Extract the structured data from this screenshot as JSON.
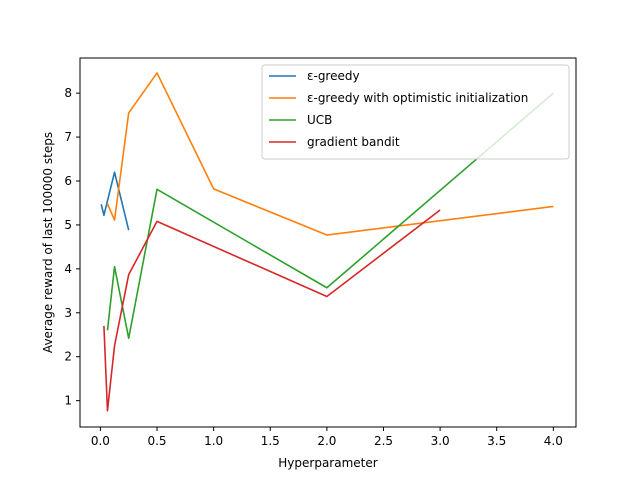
{
  "chart_data": {
    "type": "line",
    "xlabel": "Hyperparameter",
    "ylabel": "Average reward of last 100000 steps",
    "xlim": [
      -0.18,
      4.2
    ],
    "ylim": [
      0.4,
      8.8
    ],
    "xticks": [
      0.0,
      0.5,
      1.0,
      1.5,
      2.0,
      2.5,
      3.0,
      3.5,
      4.0
    ],
    "xtick_labels": [
      "0.0",
      "0.5",
      "1.0",
      "1.5",
      "2.0",
      "2.5",
      "3.0",
      "3.5",
      "4.0"
    ],
    "yticks": [
      1,
      2,
      3,
      4,
      5,
      6,
      7,
      8
    ],
    "ytick_labels": [
      "1",
      "2",
      "3",
      "4",
      "5",
      "6",
      "7",
      "8"
    ],
    "grid": false,
    "legend_position": "top-right",
    "series": [
      {
        "name": "ε-greedy",
        "color": "#1f77b4",
        "x": [
          0.0078125,
          0.03125,
          0.125,
          0.25
        ],
        "y": [
          5.47,
          5.22,
          6.2,
          4.88
        ]
      },
      {
        "name": "ε-greedy with optimistic initialization",
        "color": "#ff7f0e",
        "x": [
          0.0625,
          0.125,
          0.25,
          0.5,
          1.0,
          2.0,
          4.0
        ],
        "y": [
          5.48,
          5.11,
          7.55,
          8.46,
          5.82,
          4.77,
          5.42
        ]
      },
      {
        "name": "UCB",
        "color": "#2ca02c",
        "x": [
          0.0625,
          0.125,
          0.25,
          0.5,
          2.0,
          4.0
        ],
        "y": [
          2.6,
          4.05,
          2.42,
          5.81,
          3.57,
          8.0
        ]
      },
      {
        "name": "gradient bandit",
        "color": "#d62728",
        "x": [
          0.03125,
          0.0625,
          0.125,
          0.25,
          0.5,
          2.0,
          3.0
        ],
        "y": [
          2.7,
          0.77,
          2.25,
          3.87,
          5.08,
          3.37,
          5.34
        ]
      }
    ]
  }
}
